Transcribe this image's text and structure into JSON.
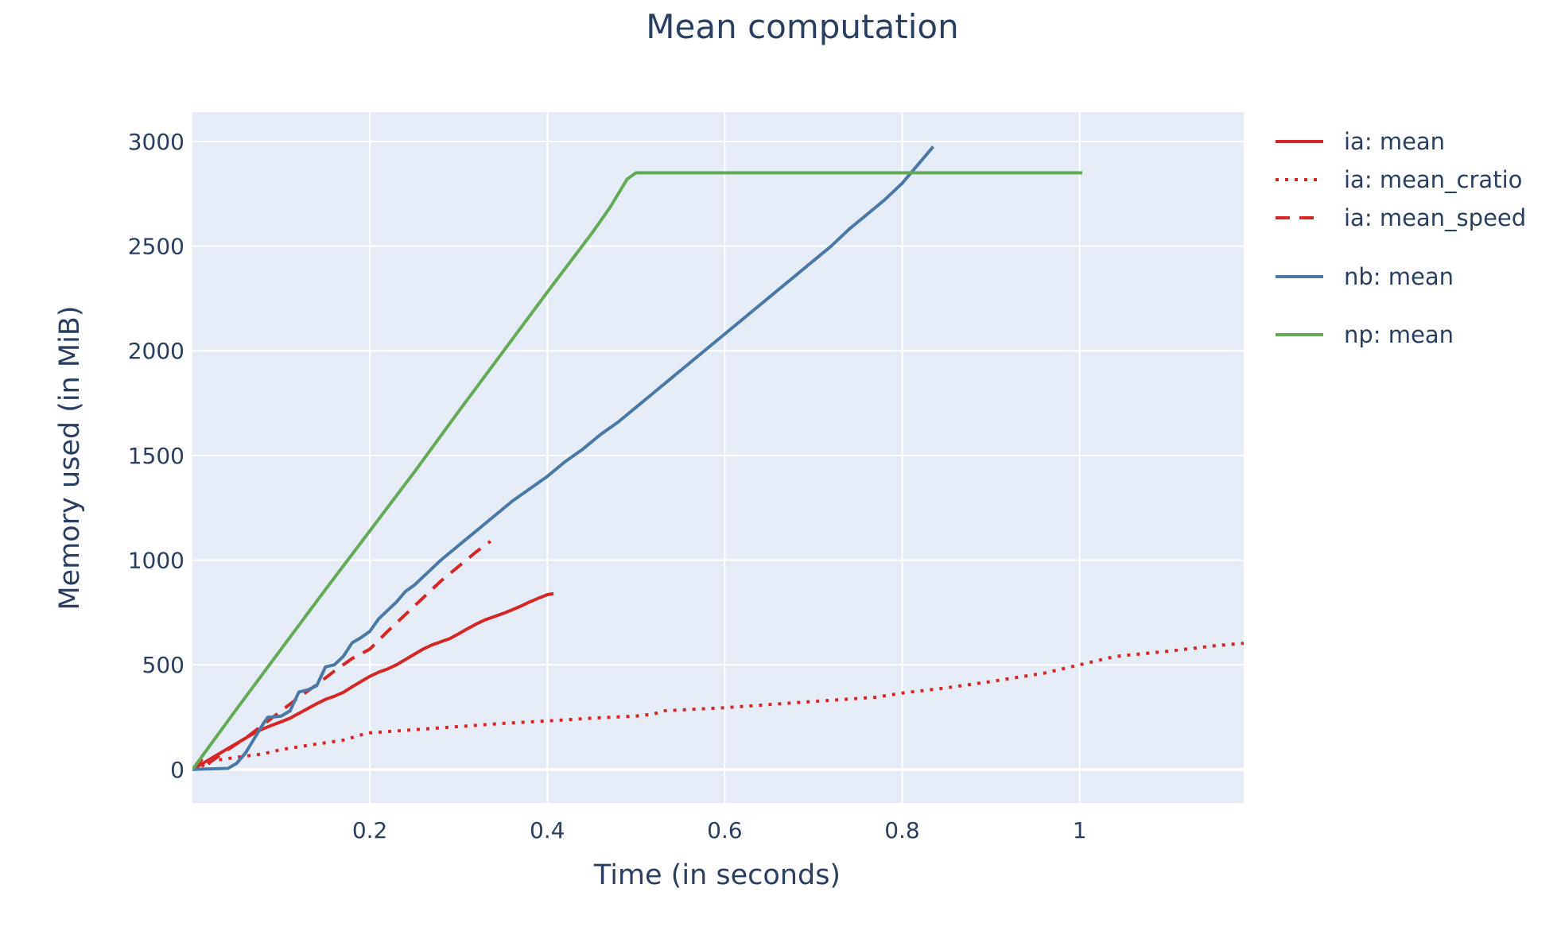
{
  "chart_data": {
    "type": "line",
    "title": "Mean computation",
    "xlabel": "Time (in seconds)",
    "ylabel": "Memory used (in MiB)",
    "xlim": [
      0,
      1.185
    ],
    "ylim": [
      -160,
      3140
    ],
    "xticks": [
      {
        "value": 0.2,
        "label": "0.2"
      },
      {
        "value": 0.4,
        "label": "0.4"
      },
      {
        "value": 0.6,
        "label": "0.6"
      },
      {
        "value": 0.8,
        "label": "0.8"
      },
      {
        "value": 1.0,
        "label": "1"
      }
    ],
    "yticks": [
      {
        "value": 0,
        "label": "0"
      },
      {
        "value": 500,
        "label": "500"
      },
      {
        "value": 1000,
        "label": "1000"
      },
      {
        "value": 1500,
        "label": "1500"
      },
      {
        "value": 2000,
        "label": "2000"
      },
      {
        "value": 2500,
        "label": "2500"
      },
      {
        "value": 3000,
        "label": "3000"
      }
    ],
    "grid": true,
    "legend_position": "right",
    "plot_background": "#e5ecf6",
    "series": [
      {
        "name": "ia: mean",
        "color": "#d62728",
        "dash": "solid",
        "x": [
          0,
          0.01,
          0.02,
          0.03,
          0.04,
          0.05,
          0.06,
          0.07,
          0.08,
          0.09,
          0.1,
          0.11,
          0.12,
          0.13,
          0.14,
          0.15,
          0.16,
          0.17,
          0.18,
          0.19,
          0.2,
          0.21,
          0.22,
          0.23,
          0.24,
          0.25,
          0.26,
          0.27,
          0.28,
          0.29,
          0.3,
          0.31,
          0.32,
          0.33,
          0.34,
          0.35,
          0.36,
          0.37,
          0.38,
          0.39,
          0.4,
          0.407
        ],
        "y": [
          0,
          25,
          50,
          75,
          100,
          125,
          150,
          175,
          195,
          212,
          228,
          245,
          268,
          291,
          314,
          335,
          350,
          368,
          395,
          420,
          445,
          465,
          480,
          500,
          525,
          550,
          575,
          595,
          610,
          625,
          648,
          672,
          695,
          715,
          730,
          745,
          762,
          780,
          800,
          818,
          835,
          840
        ]
      },
      {
        "name": "ia: mean_cratio",
        "color": "#d62728",
        "dash": "dot",
        "x": [
          0,
          0.01,
          0.02,
          0.05,
          0.08,
          0.1,
          0.13,
          0.17,
          0.19,
          0.2,
          0.25,
          0.3,
          0.35,
          0.4,
          0.45,
          0.5,
          0.52,
          0.53,
          0.6,
          0.65,
          0.7,
          0.77,
          0.8,
          0.85,
          0.9,
          0.96,
          1.0,
          1.04,
          1.1,
          1.15,
          1.185
        ],
        "y": [
          0,
          15,
          40,
          58,
          75,
          95,
          115,
          140,
          165,
          175,
          190,
          205,
          220,
          232,
          245,
          255,
          265,
          280,
          295,
          310,
          325,
          345,
          365,
          390,
          420,
          460,
          500,
          540,
          565,
          590,
          603
        ]
      },
      {
        "name": "ia: mean_speed",
        "color": "#d62728",
        "dash": "dash",
        "x": [
          0,
          0.01,
          0.015,
          0.02,
          0.04,
          0.06,
          0.08,
          0.1,
          0.12,
          0.14,
          0.16,
          0.18,
          0.2,
          0.22,
          0.24,
          0.26,
          0.28,
          0.3,
          0.32,
          0.336
        ],
        "y": [
          0,
          45,
          15,
          35,
          95,
          150,
          215,
          280,
          345,
          405,
          470,
          530,
          575,
          660,
          740,
          820,
          900,
          970,
          1040,
          1090
        ]
      },
      {
        "name": "nb: mean",
        "color": "#4c78a8",
        "dash": "solid",
        "x": [
          0,
          0.01,
          0.02,
          0.04,
          0.05,
          0.06,
          0.07,
          0.08,
          0.085,
          0.09,
          0.1,
          0.11,
          0.12,
          0.13,
          0.14,
          0.15,
          0.16,
          0.17,
          0.18,
          0.19,
          0.2,
          0.21,
          0.22,
          0.23,
          0.24,
          0.25,
          0.26,
          0.27,
          0.28,
          0.3,
          0.32,
          0.34,
          0.36,
          0.38,
          0.4,
          0.42,
          0.44,
          0.46,
          0.48,
          0.5,
          0.52,
          0.54,
          0.56,
          0.58,
          0.6,
          0.62,
          0.64,
          0.66,
          0.68,
          0.7,
          0.72,
          0.74,
          0.76,
          0.78,
          0.8,
          0.82,
          0.835
        ],
        "y": [
          0,
          2,
          3,
          5,
          30,
          80,
          150,
          220,
          250,
          250,
          255,
          280,
          370,
          380,
          400,
          490,
          500,
          540,
          605,
          630,
          660,
          720,
          760,
          800,
          850,
          880,
          920,
          960,
          1000,
          1070,
          1140,
          1210,
          1280,
          1340,
          1400,
          1470,
          1530,
          1600,
          1660,
          1730,
          1800,
          1870,
          1940,
          2010,
          2080,
          2150,
          2220,
          2290,
          2360,
          2430,
          2500,
          2580,
          2650,
          2720,
          2800,
          2900,
          2975
        ]
      },
      {
        "name": "np: mean",
        "color": "#65a857",
        "dash": "solid",
        "x": [
          0,
          0.05,
          0.1,
          0.15,
          0.2,
          0.25,
          0.3,
          0.35,
          0.4,
          0.45,
          0.47,
          0.49,
          0.5,
          0.6,
          0.7,
          0.8,
          0.9,
          1.0,
          1.003
        ],
        "y": [
          0,
          290,
          575,
          860,
          1140,
          1420,
          1710,
          1995,
          2280,
          2560,
          2680,
          2820,
          2850,
          2850,
          2850,
          2850,
          2850,
          2850,
          2850
        ]
      }
    ]
  }
}
